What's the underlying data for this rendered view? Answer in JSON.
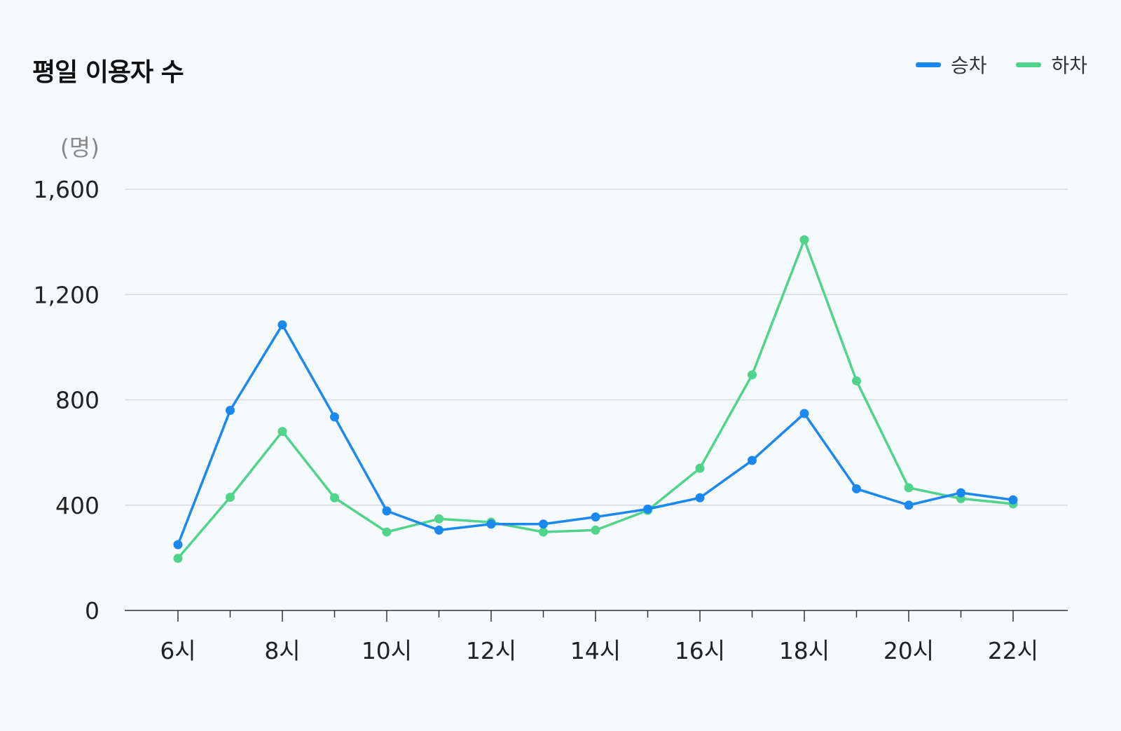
{
  "chart_data": {
    "type": "line",
    "title": "평일 이용자 수",
    "ylabel": "(명)",
    "xlabel": "",
    "x": [
      "6시",
      "7시",
      "8시",
      "9시",
      "10시",
      "11시",
      "12시",
      "13시",
      "14시",
      "15시",
      "16시",
      "17시",
      "18시",
      "19시",
      "20시",
      "21시",
      "22시"
    ],
    "x_tick_labels": [
      "6시",
      "8시",
      "10시",
      "12시",
      "14시",
      "16시",
      "18시",
      "20시",
      "22시"
    ],
    "y_tick_labels": [
      "0",
      "400",
      "800",
      "1,200",
      "1,600"
    ],
    "ylim": [
      0,
      1600
    ],
    "grid": true,
    "legend_position": "top-right",
    "series": [
      {
        "name": "승차",
        "color": "#1b88f0",
        "values": [
          250,
          760,
          1085,
          735,
          378,
          305,
          328,
          328,
          355,
          385,
          428,
          570,
          748,
          462,
          400,
          447,
          420
        ]
      },
      {
        "name": "하차",
        "color": "#50d38a",
        "values": [
          198,
          430,
          680,
          428,
          298,
          348,
          335,
          298,
          305,
          380,
          540,
          895,
          1408,
          872,
          466,
          425,
          405
        ]
      }
    ]
  },
  "colors": {
    "background": "#f7fafd",
    "grid": "#d5dbe1",
    "axis": "#333333"
  }
}
